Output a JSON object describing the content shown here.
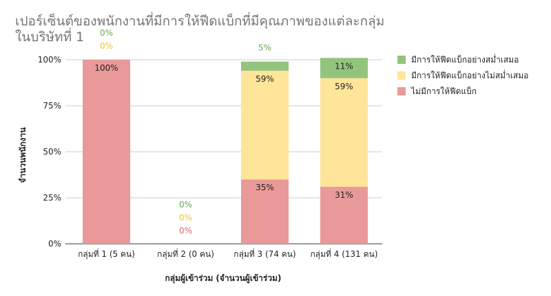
{
  "chart_data": {
    "type": "bar",
    "stacked": true,
    "percent": true,
    "title_lines": [
      "เปอร์เซ็นต์ของพนักงานที่มีการให้ฟีดแบ็กที่มีคุณภาพของแต่ละกลุ่ม",
      "ในบริษัทที่ 1"
    ],
    "xlabel": "กลุ่มผู้เข้าร่วม (จำนวนผู้เข้าร่วม)",
    "ylabel": "จำนวนพนักงาน",
    "ylim": [
      0,
      100
    ],
    "yticks": [
      "0%",
      "25%",
      "50%",
      "75%",
      "100%"
    ],
    "grid": true,
    "legend_position": "right",
    "categories": [
      "กลุ่มที่ 1 (5 คน)",
      "กลุ่มที่ 2 (0 คน)",
      "กลุ่มที่ 3 (74 คน)",
      "กลุ่มที่ 4 (131 คน)"
    ],
    "series": [
      {
        "name": "ไม่มีการให้ฟีดแบ็ก",
        "color": "#ea9999",
        "label_color": "#e06666",
        "values": [
          100,
          0,
          35,
          31
        ],
        "labels": [
          "100%",
          "0%",
          "35%",
          "31%"
        ]
      },
      {
        "name": "มีการให้ฟีดแบ็กอย่างไม่สม่ำเสมอ",
        "color": "#ffe599",
        "label_color": "#f1c232",
        "values": [
          0,
          0,
          59,
          59
        ],
        "labels": [
          "0%",
          "0%",
          "59%",
          "59%"
        ]
      },
      {
        "name": "มีการให้ฟีดแบ็กอย่างสม่ำเสมอ",
        "color": "#93c47d",
        "label_color": "#6aa84f",
        "values": [
          0,
          0,
          5,
          11
        ],
        "labels": [
          "0%",
          "0%",
          "5%",
          "11%"
        ]
      }
    ],
    "legend_order": [
      2,
      1,
      0
    ]
  }
}
